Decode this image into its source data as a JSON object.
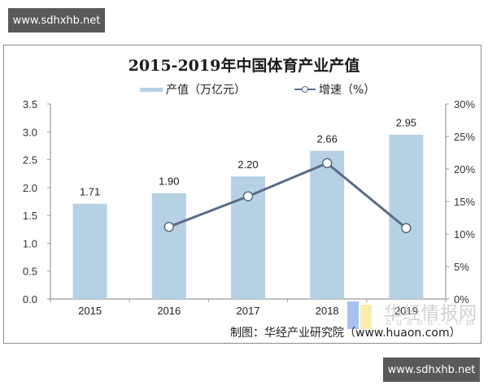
{
  "watermarks": {
    "top": "www.sdhxhb.net",
    "bottom": "www.sdhxhb.net",
    "overlay_logo_text": "华经情报网",
    "overlay_logo_sub": "huaon.com"
  },
  "footer": {
    "source": "制图：华经产业研究院（www.huaon.com）"
  },
  "chart_data": {
    "type": "bar",
    "title": "2015-2019年中国体育产业产值",
    "categories": [
      "2015",
      "2016",
      "2017",
      "2018",
      "2019"
    ],
    "series": [
      {
        "name": "产值（万亿元）",
        "type": "bar",
        "axis": "left",
        "color": "#b7d1e4",
        "values": [
          1.71,
          1.9,
          2.2,
          2.66,
          2.95
        ],
        "labels": [
          "1.71",
          "1.90",
          "2.20",
          "2.66",
          "2.95"
        ]
      },
      {
        "name": "增速（%）",
        "type": "line",
        "axis": "right",
        "color": "#5b6b86",
        "values": [
          null,
          11.1,
          15.8,
          20.9,
          10.9
        ]
      }
    ],
    "left_axis": {
      "ticks": [
        "0.0",
        "0.5",
        "1.0",
        "1.5",
        "2.0",
        "2.5",
        "3.0",
        "3.5"
      ],
      "ylim": [
        0,
        3.5
      ]
    },
    "right_axis": {
      "ticks": [
        "0%",
        "5%",
        "10%",
        "15%",
        "20%",
        "25%",
        "30%"
      ],
      "ylim": [
        0,
        30
      ]
    },
    "xlabel": "",
    "ylabel": "",
    "grid": false,
    "legend_position": "top"
  }
}
